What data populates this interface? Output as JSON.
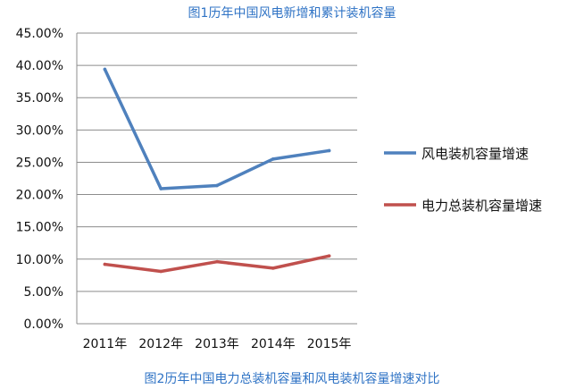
{
  "captions": {
    "top": "图1历年中国风电新增和累计装机容量",
    "bottom": "图2历年中国电力总装机容量和风电装机容量增速对比"
  },
  "colors": {
    "wind_series": "#4f81bd",
    "power_series": "#c0504d",
    "grid": "#8c8c8c"
  },
  "chart_data": {
    "type": "line",
    "categories": [
      "2011年",
      "2012年",
      "2013年",
      "2014年",
      "2015年"
    ],
    "ylim": [
      0,
      45
    ],
    "ytick_labels": [
      "0.00%",
      "5.00%",
      "10.00%",
      "15.00%",
      "20.00%",
      "25.00%",
      "30.00%",
      "35.00%",
      "40.00%",
      "45.00%"
    ],
    "grid": true,
    "legend_position": "right",
    "series": [
      {
        "name": "风电装机容量增速",
        "values": [
          39.4,
          20.9,
          21.4,
          25.5,
          26.8
        ]
      },
      {
        "name": "电力总装机容量增速",
        "values": [
          9.2,
          8.1,
          9.6,
          8.6,
          10.5
        ]
      }
    ]
  }
}
